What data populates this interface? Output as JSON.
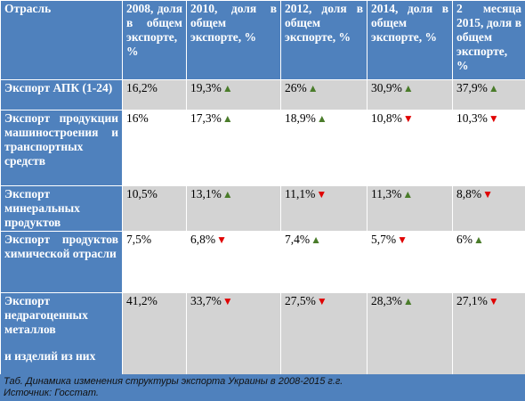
{
  "table": {
    "headers": [
      "Отрасль",
      "2008, доля в общем экспорте, %",
      "2010, доля в общем экспорте, %",
      "2012, доля в общем экспорте, %",
      "2014, доля в общем экспорте, %",
      "2 месяца 2015, доля в общем экспорте, %"
    ],
    "rows": [
      {
        "label": "Экспорт АПК (1-24)",
        "cells": [
          {
            "value": "16,2%",
            "trend": ""
          },
          {
            "value": "19,3%",
            "trend": "up"
          },
          {
            "value": "26%",
            "trend": "up"
          },
          {
            "value": "30,9%",
            "trend": "up"
          },
          {
            "value": "37,9%",
            "trend": "up"
          }
        ]
      },
      {
        "label": "Экспорт продукции машиностроения и транспортных средств",
        "cells": [
          {
            "value": "16%",
            "trend": ""
          },
          {
            "value": "17,3%",
            "trend": "up"
          },
          {
            "value": "18,9%",
            "trend": "up"
          },
          {
            "value": "10,8%",
            "trend": "down"
          },
          {
            "value": "10,3%",
            "trend": "down"
          }
        ]
      },
      {
        "label": "Экспорт минеральных продуктов",
        "cells": [
          {
            "value": "10,5%",
            "trend": ""
          },
          {
            "value": "13,1%",
            "trend": "up"
          },
          {
            "value": "11,1%",
            "trend": "down"
          },
          {
            "value": "11,3%",
            "trend": "up"
          },
          {
            "value": "8,8%",
            "trend": "down"
          }
        ]
      },
      {
        "label": "Экспорт продуктов химической отрасли",
        "cells": [
          {
            "value": "7,5%",
            "trend": ""
          },
          {
            "value": "6,8%",
            "trend": "down"
          },
          {
            "value": "7,4%",
            "trend": "up"
          },
          {
            "value": "5,7%",
            "trend": "down"
          },
          {
            "value": "6%",
            "trend": "up"
          }
        ]
      },
      {
        "label": "Экспорт недрагоценных металлов",
        "label_extra": "и изделий из них",
        "cells": [
          {
            "value": "41,2%",
            "trend": ""
          },
          {
            "value": "33,7%",
            "trend": "down"
          },
          {
            "value": "27,5%",
            "trend": "down"
          },
          {
            "value": "28,3%",
            "trend": "up"
          },
          {
            "value": "27,1%",
            "trend": "down"
          }
        ]
      }
    ]
  },
  "caption": {
    "line1": "Таб. Динамика изменения структуры экспорта Украины в 2008-2015 г.г.",
    "line2": "Источник: Госстат."
  },
  "colors": {
    "header_bg": "#4f81bd",
    "row_gray": "#d3d3d3",
    "up": "#4a7c2a",
    "down": "#e00000"
  }
}
